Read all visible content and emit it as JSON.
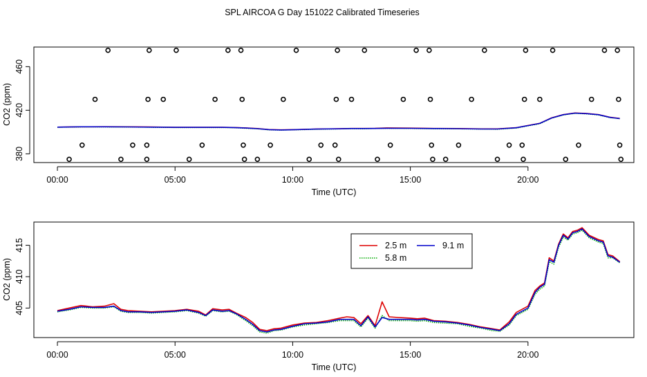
{
  "page_title": "SPL AIRCOA G  Day 151022  Calibrated Timeseries",
  "chart_data": [
    {
      "type": "scatter",
      "title": "",
      "xlabel": "Time (UTC)",
      "ylabel": "CO2 (ppm)",
      "xlim": [
        -1.0,
        24.5
      ],
      "ylim": [
        372.0,
        478.0
      ],
      "x_ticks": [
        {
          "value": 0,
          "label": "00:00"
        },
        {
          "value": 5,
          "label": "05:00"
        },
        {
          "value": 10,
          "label": "10:00"
        },
        {
          "value": 15,
          "label": "15:00"
        },
        {
          "value": 20,
          "label": "20:00"
        }
      ],
      "y_ticks": [
        {
          "value": 380,
          "label": "380"
        },
        {
          "value": 420,
          "label": "420"
        },
        {
          "value": 460,
          "label": "460"
        }
      ],
      "qc_points": {
        "marker": "open-circle",
        "points": [
          {
            "x": 0.5,
            "y": 375
          },
          {
            "x": 1.05,
            "y": 388
          },
          {
            "x": 1.6,
            "y": 430
          },
          {
            "x": 2.15,
            "y": 475
          },
          {
            "x": 2.7,
            "y": 375
          },
          {
            "x": 3.2,
            "y": 388
          },
          {
            "x": 3.8,
            "y": 388
          },
          {
            "x": 3.8,
            "y": 375
          },
          {
            "x": 3.85,
            "y": 430
          },
          {
            "x": 3.9,
            "y": 475
          },
          {
            "x": 4.5,
            "y": 430
          },
          {
            "x": 5.05,
            "y": 475
          },
          {
            "x": 5.6,
            "y": 375
          },
          {
            "x": 6.15,
            "y": 388
          },
          {
            "x": 6.7,
            "y": 430
          },
          {
            "x": 7.25,
            "y": 475
          },
          {
            "x": 7.8,
            "y": 475
          },
          {
            "x": 7.85,
            "y": 430
          },
          {
            "x": 7.9,
            "y": 388
          },
          {
            "x": 7.95,
            "y": 375
          },
          {
            "x": 8.5,
            "y": 375
          },
          {
            "x": 9.05,
            "y": 388
          },
          {
            "x": 9.6,
            "y": 430
          },
          {
            "x": 10.15,
            "y": 475
          },
          {
            "x": 10.7,
            "y": 375
          },
          {
            "x": 11.2,
            "y": 388
          },
          {
            "x": 11.8,
            "y": 388
          },
          {
            "x": 11.85,
            "y": 430
          },
          {
            "x": 11.9,
            "y": 475
          },
          {
            "x": 11.95,
            "y": 375
          },
          {
            "x": 12.5,
            "y": 430
          },
          {
            "x": 13.05,
            "y": 475
          },
          {
            "x": 13.6,
            "y": 375
          },
          {
            "x": 14.15,
            "y": 388
          },
          {
            "x": 14.7,
            "y": 430
          },
          {
            "x": 15.25,
            "y": 475
          },
          {
            "x": 15.8,
            "y": 475
          },
          {
            "x": 15.85,
            "y": 430
          },
          {
            "x": 15.9,
            "y": 388
          },
          {
            "x": 15.95,
            "y": 375
          },
          {
            "x": 16.5,
            "y": 375
          },
          {
            "x": 17.05,
            "y": 388
          },
          {
            "x": 17.6,
            "y": 430
          },
          {
            "x": 18.15,
            "y": 475
          },
          {
            "x": 18.7,
            "y": 375
          },
          {
            "x": 19.2,
            "y": 388
          },
          {
            "x": 19.75,
            "y": 388
          },
          {
            "x": 19.8,
            "y": 375
          },
          {
            "x": 19.85,
            "y": 430
          },
          {
            "x": 19.9,
            "y": 475
          },
          {
            "x": 20.5,
            "y": 430
          },
          {
            "x": 21.05,
            "y": 475
          },
          {
            "x": 21.6,
            "y": 375
          },
          {
            "x": 22.15,
            "y": 388
          },
          {
            "x": 22.7,
            "y": 430
          },
          {
            "x": 23.25,
            "y": 475
          },
          {
            "x": 23.8,
            "y": 475
          },
          {
            "x": 23.85,
            "y": 430
          },
          {
            "x": 23.9,
            "y": 388
          },
          {
            "x": 23.95,
            "y": 375
          }
        ]
      },
      "series": [
        {
          "name": "2.5 m",
          "color": "#dd0000",
          "dash": "solid",
          "x": [
            0,
            1,
            2,
            3,
            4,
            5,
            6,
            7,
            7.5,
            8,
            8.5,
            9,
            9.5,
            10,
            11,
            12,
            12.5,
            13,
            13.5,
            14,
            15,
            16,
            17,
            18,
            18.7,
            19.5,
            20,
            20.5,
            21,
            21.5,
            22,
            22.5,
            23,
            23.5,
            23.9
          ],
          "y": [
            404.5,
            404.8,
            404.9,
            404.8,
            404.6,
            404.4,
            404.4,
            404.4,
            404.2,
            403.8,
            403.2,
            402.3,
            402.0,
            402.2,
            402.8,
            403.1,
            403.3,
            403.3,
            403.4,
            403.8,
            403.6,
            403.3,
            403.2,
            402.9,
            402.9,
            404.0,
            406.0,
            408.0,
            413.0,
            416.0,
            417.5,
            417.0,
            416.0,
            413.5,
            412.5
          ]
        },
        {
          "name": "5.8 m",
          "color": "#00aa00",
          "dash": "dotted",
          "x": [
            0,
            1,
            2,
            3,
            4,
            5,
            6,
            7,
            7.5,
            8,
            8.5,
            9,
            9.5,
            10,
            11,
            12,
            12.5,
            13,
            13.5,
            14,
            15,
            16,
            17,
            18,
            18.7,
            19.5,
            20,
            20.5,
            21,
            21.5,
            22,
            22.5,
            23,
            23.5,
            23.9
          ],
          "y": [
            404.4,
            404.7,
            404.7,
            404.6,
            404.4,
            404.2,
            404.2,
            404.2,
            404.0,
            403.5,
            403.0,
            402.0,
            401.8,
            402.0,
            402.5,
            402.9,
            403.1,
            403.0,
            403.2,
            403.4,
            403.3,
            403.0,
            403.0,
            402.7,
            402.6,
            403.7,
            405.7,
            407.7,
            412.7,
            415.7,
            417.2,
            416.7,
            415.7,
            413.2,
            412.3
          ]
        },
        {
          "name": "9.1 m",
          "color": "#0000cc",
          "dash": "solid",
          "x": [
            0,
            1,
            2,
            3,
            4,
            5,
            6,
            7,
            7.5,
            8,
            8.5,
            9,
            9.5,
            10,
            11,
            12,
            12.5,
            13,
            13.5,
            14,
            15,
            16,
            17,
            18,
            18.7,
            19.5,
            20,
            20.5,
            21,
            21.5,
            22,
            22.5,
            23,
            23.5,
            23.9
          ],
          "y": [
            404.5,
            404.8,
            404.8,
            404.7,
            404.5,
            404.3,
            404.3,
            404.3,
            404.1,
            403.7,
            403.1,
            402.2,
            401.9,
            402.1,
            402.7,
            403.0,
            403.2,
            403.2,
            403.3,
            403.5,
            403.4,
            403.2,
            403.1,
            402.8,
            402.8,
            403.9,
            405.9,
            407.9,
            412.9,
            415.9,
            417.4,
            416.9,
            415.9,
            413.4,
            412.4
          ]
        }
      ]
    },
    {
      "type": "line",
      "title": "",
      "xlabel": "Time (UTC)",
      "ylabel": "CO2 (ppm)",
      "xlim": [
        -1.0,
        24.5
      ],
      "ylim": [
        400.3,
        418.7
      ],
      "x_ticks": [
        {
          "value": 0,
          "label": "00:00"
        },
        {
          "value": 5,
          "label": "05:00"
        },
        {
          "value": 10,
          "label": "10:00"
        },
        {
          "value": 15,
          "label": "15:00"
        },
        {
          "value": 20,
          "label": "20:00"
        }
      ],
      "y_ticks": [
        {
          "value": 405,
          "label": "405"
        },
        {
          "value": 410,
          "label": "410"
        },
        {
          "value": 415,
          "label": "415"
        }
      ],
      "legend": {
        "position": "top-right",
        "entries": [
          "2.5 m",
          "5.8 m",
          "9.1 m"
        ]
      },
      "series": [
        {
          "name": "2.5 m",
          "color": "#dd0000",
          "dash": "solid",
          "x": [
            0,
            0.5,
            1,
            1.5,
            2,
            2.4,
            2.7,
            3,
            3.5,
            4,
            4.5,
            5,
            5.5,
            6,
            6.3,
            6.6,
            7,
            7.3,
            7.6,
            8,
            8.3,
            8.6,
            8.9,
            9.2,
            9.5,
            10,
            10.5,
            11,
            11.5,
            12,
            12.3,
            12.6,
            12.9,
            13.2,
            13.5,
            13.8,
            14.1,
            14.5,
            15,
            15.3,
            15.6,
            16,
            16.5,
            17,
            17.5,
            18,
            18.5,
            18.8,
            19.2,
            19.5,
            20,
            20.3,
            20.5,
            20.7,
            20.9,
            21.1,
            21.3,
            21.5,
            21.7,
            21.9,
            22.1,
            22.3,
            22.6,
            23,
            23.2,
            23.4,
            23.6,
            23.9
          ],
          "y": [
            404.6,
            405.0,
            405.4,
            405.2,
            405.3,
            405.7,
            404.8,
            404.6,
            404.5,
            404.4,
            404.5,
            404.6,
            404.8,
            404.5,
            403.9,
            404.9,
            404.7,
            404.8,
            404.2,
            403.5,
            402.7,
            401.6,
            401.4,
            401.7,
            401.8,
            402.3,
            402.6,
            402.7,
            403.0,
            403.4,
            403.6,
            403.5,
            402.5,
            403.8,
            402.2,
            406.0,
            403.6,
            403.5,
            403.4,
            403.3,
            403.4,
            403.0,
            402.9,
            402.7,
            402.4,
            402.0,
            401.7,
            401.5,
            402.8,
            404.3,
            405.3,
            407.8,
            408.5,
            409.0,
            413.0,
            412.5,
            415.2,
            416.8,
            416.2,
            417.2,
            417.4,
            417.8,
            416.6,
            415.9,
            415.7,
            413.5,
            413.3,
            412.4
          ]
        },
        {
          "name": "5.8 m",
          "color": "#00aa00",
          "dash": "dotted",
          "x": [
            0,
            0.5,
            1,
            1.5,
            2,
            2.4,
            2.7,
            3,
            3.5,
            4,
            4.5,
            5,
            5.5,
            6,
            6.3,
            6.6,
            7,
            7.3,
            7.6,
            8,
            8.3,
            8.6,
            8.9,
            9.2,
            9.5,
            10,
            10.5,
            11,
            11.5,
            12,
            12.3,
            12.6,
            12.9,
            13.2,
            13.5,
            13.8,
            14.1,
            14.5,
            15,
            15.3,
            15.6,
            16,
            16.5,
            17,
            17.5,
            18,
            18.5,
            18.8,
            19.2,
            19.5,
            20,
            20.3,
            20.5,
            20.7,
            20.9,
            21.1,
            21.3,
            21.5,
            21.7,
            21.9,
            22.1,
            22.3,
            22.6,
            23,
            23.2,
            23.4,
            23.6,
            23.9
          ],
          "y": [
            404.4,
            404.7,
            405.1,
            405.0,
            405.0,
            405.2,
            404.5,
            404.3,
            404.3,
            404.2,
            404.3,
            404.4,
            404.6,
            404.2,
            403.7,
            404.6,
            404.4,
            404.5,
            404.0,
            403.0,
            402.2,
            401.2,
            401.0,
            401.4,
            401.5,
            402.0,
            402.3,
            402.5,
            402.7,
            403.0,
            403.0,
            403.0,
            402.0,
            403.4,
            401.8,
            403.8,
            403.0,
            403.0,
            403.0,
            402.9,
            403.0,
            402.7,
            402.6,
            402.5,
            402.1,
            401.8,
            401.4,
            401.3,
            402.3,
            403.8,
            404.8,
            407.2,
            408.0,
            408.5,
            412.4,
            412.0,
            414.7,
            416.3,
            415.8,
            416.8,
            417.0,
            417.4,
            416.2,
            415.5,
            415.3,
            413.0,
            413.0,
            412.2
          ]
        },
        {
          "name": "9.1 m",
          "color": "#0000cc",
          "dash": "solid",
          "x": [
            0,
            0.5,
            1,
            1.5,
            2,
            2.4,
            2.7,
            3,
            3.5,
            4,
            4.5,
            5,
            5.5,
            6,
            6.3,
            6.6,
            7,
            7.3,
            7.6,
            8,
            8.3,
            8.6,
            8.9,
            9.2,
            9.5,
            10,
            10.5,
            11,
            11.5,
            12,
            12.3,
            12.6,
            12.9,
            13.2,
            13.5,
            13.8,
            14.1,
            14.5,
            15,
            15.3,
            15.6,
            16,
            16.5,
            17,
            17.5,
            18,
            18.5,
            18.8,
            19.2,
            19.5,
            20,
            20.3,
            20.5,
            20.7,
            20.9,
            21.1,
            21.3,
            21.5,
            21.7,
            21.9,
            22.1,
            22.3,
            22.6,
            23,
            23.2,
            23.4,
            23.6,
            23.9
          ],
          "y": [
            404.5,
            404.8,
            405.2,
            405.1,
            405.1,
            405.3,
            404.6,
            404.4,
            404.4,
            404.3,
            404.4,
            404.5,
            404.7,
            404.3,
            403.8,
            404.7,
            404.5,
            404.6,
            404.1,
            403.2,
            402.4,
            401.4,
            401.2,
            401.5,
            401.6,
            402.1,
            402.5,
            402.6,
            402.8,
            403.2,
            403.2,
            403.2,
            402.2,
            403.6,
            402.0,
            403.5,
            403.2,
            403.2,
            403.2,
            403.1,
            403.2,
            402.9,
            402.8,
            402.6,
            402.3,
            401.9,
            401.6,
            401.4,
            402.5,
            404.0,
            405.0,
            407.5,
            408.3,
            408.8,
            412.7,
            412.3,
            415.0,
            416.6,
            416.0,
            417.0,
            417.2,
            417.6,
            416.4,
            415.7,
            415.5,
            413.3,
            413.1,
            412.3
          ]
        }
      ]
    }
  ]
}
